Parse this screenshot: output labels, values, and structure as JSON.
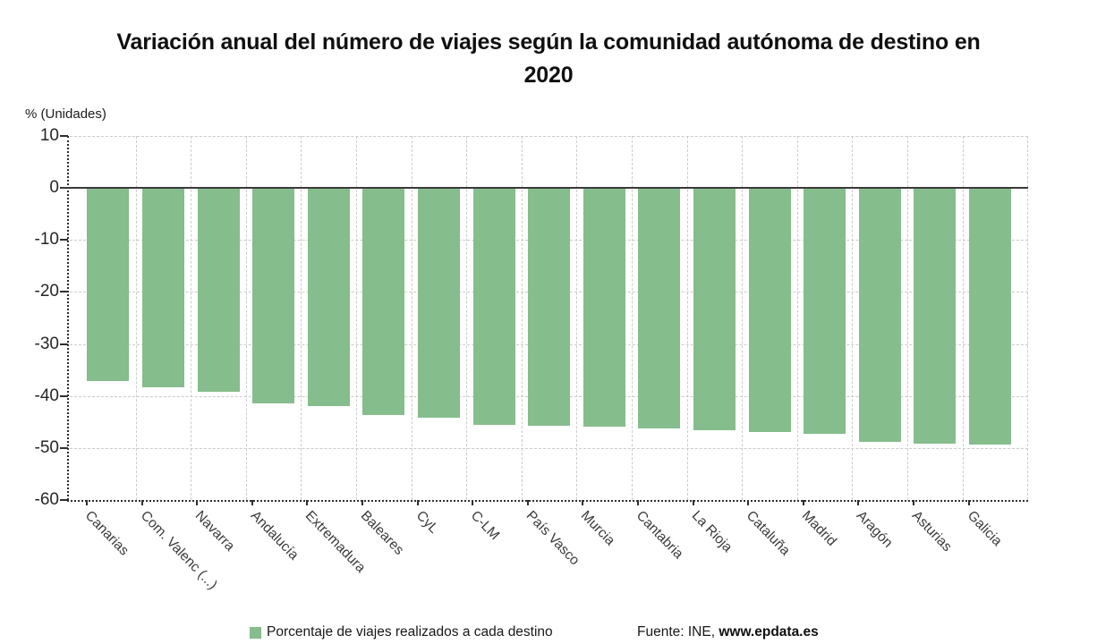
{
  "title_lines": [
    "Variación anual del número de viajes según la comunidad autónoma de destino en",
    "2020"
  ],
  "chart_data": {
    "type": "bar",
    "title": "Variación anual del número de viajes según la comunidad autónoma de destino en 2020",
    "ylabel": "% (Unidades)",
    "xlabel": "",
    "categories": [
      "Canarias",
      "Com. Valenc (...)",
      "Navarra",
      "Andalucía",
      "Extremadura",
      "Baleares",
      "CyL",
      "C-LM",
      "País Vasco",
      "Murcia",
      "Cantabria",
      "La Rioja",
      "Cataluña",
      "Madrid",
      "Aragón",
      "Asturias",
      "Galicia"
    ],
    "values": [
      -37.2,
      -38.3,
      -39.2,
      -41.5,
      -41.9,
      -43.6,
      -44.2,
      -45.6,
      -45.8,
      -45.9,
      -46.2,
      -46.5,
      -46.9,
      -47.3,
      -48.9,
      -49.2,
      -49.3
    ],
    "series_name": "Porcentaje de viajes realizados a cada destino",
    "ylim": [
      -60,
      10
    ],
    "yticks": [
      10,
      0,
      -10,
      -20,
      -30,
      -40,
      -50,
      -60
    ],
    "grid": true,
    "legend_position": "bottom",
    "bar_color": "#85BD8C",
    "colors": {
      "grid": "#cbcbcb",
      "axis": "#2e2e2e",
      "zero_line": "#3a3a3a",
      "title": "#101010",
      "tick_label": "#262626"
    }
  },
  "legend": {
    "label": "Porcentaje de viajes realizados a cada destino",
    "swatch_color": "#85BD8C"
  },
  "source": {
    "prefix": "Fuente: INE, ",
    "link": "www.epdata.es"
  }
}
